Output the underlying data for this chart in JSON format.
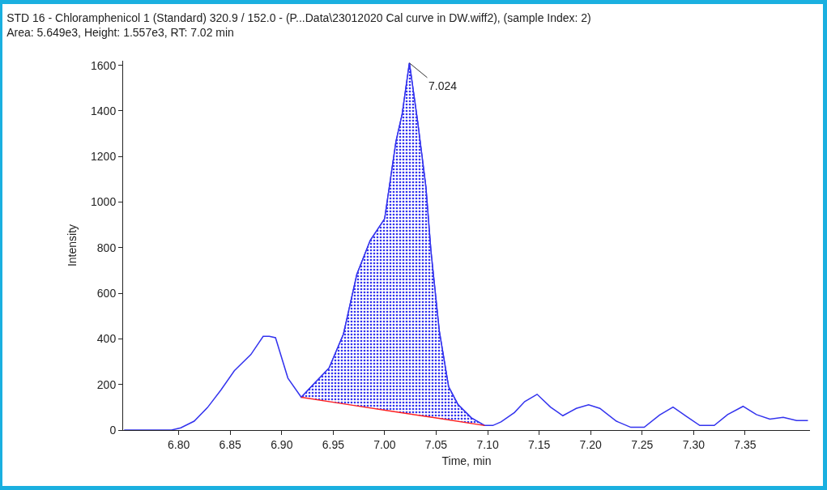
{
  "chart_data": {
    "type": "line",
    "title": "STD 16 - Chloramphenicol 1 (Standard) 320.9 / 152.0 - (P...Data\\23012020 Cal curve in DW.wiff2), (sample Index: 2)",
    "subtitle": "Area: 5.649e3, Height: 1.557e3, RT: 7.02 min",
    "xlabel": "Time, min",
    "ylabel": "Intensity",
    "xlim": [
      6.746,
      7.413
    ],
    "ylim": [
      0,
      1620
    ],
    "xticks": [
      {
        "value": 6.8,
        "label": "6.80"
      },
      6.85,
      {
        "value": 6.9,
        "label": "6.90"
      },
      6.95,
      {
        "value": 7.0,
        "label": "7.00"
      },
      7.05,
      {
        "value": 7.1,
        "label": "7.10"
      },
      7.15,
      {
        "value": 7.2,
        "label": "7.20"
      },
      7.25,
      {
        "value": 7.3,
        "label": "7.30"
      },
      7.35
    ],
    "yticks": [
      0,
      200,
      400,
      600,
      800,
      1000,
      1200,
      1400,
      1600
    ],
    "grid": false,
    "marker": "none",
    "line_style": "solid",
    "annotations": [
      {
        "text": "7.024",
        "x": 7.024,
        "y": 1610
      }
    ],
    "series": [
      {
        "color": "#3333ee",
        "x": [
          6.747,
          6.793,
          6.802,
          6.815,
          6.828,
          6.841,
          6.854,
          6.87,
          6.882,
          6.888,
          6.894,
          6.906,
          6.919,
          6.932,
          6.946,
          6.96,
          6.973,
          6.986,
          7.0,
          7.011,
          7.017,
          7.024,
          7.032,
          7.04,
          7.045,
          7.053,
          7.062,
          7.071,
          7.084,
          7.097,
          7.105,
          7.113,
          7.126,
          7.136,
          7.148,
          7.161,
          7.173,
          7.186,
          7.198,
          7.209,
          7.225,
          7.239,
          7.252,
          7.267,
          7.28,
          7.293,
          7.306,
          7.32,
          7.333,
          7.348,
          7.361,
          7.374,
          7.387,
          7.4,
          7.411
        ],
        "values": [
          0,
          0,
          10,
          39,
          99,
          176,
          260,
          331,
          411,
          411,
          405,
          228,
          144,
          206,
          272,
          421,
          683,
          832,
          927,
          1266,
          1386,
          1610,
          1352,
          1066,
          780,
          435,
          191,
          113,
          54,
          20,
          20,
          36,
          77,
          125,
          157,
          101,
          63,
          95,
          111,
          95,
          39,
          12,
          12,
          66,
          101,
          60,
          20,
          20,
          68,
          104,
          68,
          48,
          56,
          42,
          42
        ]
      },
      {
        "type": "area",
        "color": "#3333ee",
        "x": [
          6.919,
          6.932,
          6.946,
          6.96,
          6.973,
          6.986,
          7.0,
          7.011,
          7.017,
          7.024,
          7.032,
          7.04,
          7.045,
          7.053,
          7.062,
          7.071,
          7.084,
          7.097
        ],
        "values": [
          144,
          206,
          272,
          421,
          683,
          832,
          927,
          1266,
          1386,
          1610,
          1352,
          1066,
          780,
          435,
          191,
          113,
          54,
          20
        ]
      },
      {
        "type": "line",
        "color": "#ff2020",
        "x": [
          6.919,
          6.96,
          7.008,
          7.05,
          7.097
        ],
        "values": [
          144,
          115,
          82,
          53,
          20
        ]
      }
    ]
  }
}
